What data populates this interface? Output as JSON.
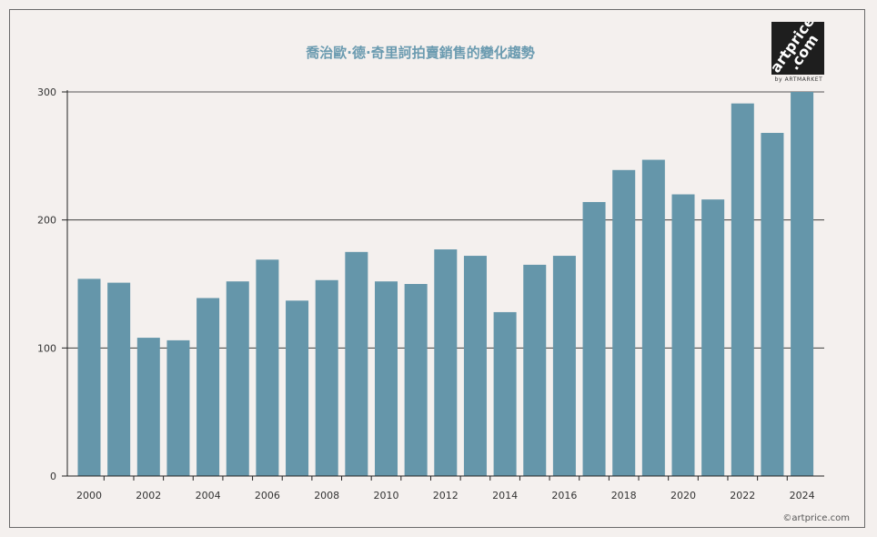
{
  "chart_data": {
    "type": "bar",
    "title": "喬治歐·德·奇里訶拍賣銷售的變化趨勢",
    "xlabel": "",
    "ylabel": "",
    "categories": [
      "2000",
      "2001",
      "2002",
      "2003",
      "2004",
      "2005",
      "2006",
      "2007",
      "2008",
      "2009",
      "2010",
      "2011",
      "2012",
      "2013",
      "2014",
      "2015",
      "2016",
      "2017",
      "2018",
      "2019",
      "2020",
      "2021",
      "2022",
      "2023",
      "2024"
    ],
    "x_tick_labels": [
      "2000",
      "2002",
      "2004",
      "2006",
      "2008",
      "2010",
      "2012",
      "2014",
      "2016",
      "2018",
      "2020",
      "2022",
      "2024"
    ],
    "values": [
      154,
      151,
      108,
      106,
      139,
      152,
      169,
      137,
      153,
      175,
      152,
      150,
      177,
      172,
      128,
      165,
      172,
      214,
      239,
      247,
      220,
      216,
      291,
      268,
      301
    ],
    "ylim": [
      0,
      300
    ],
    "y_ticks": [
      0,
      100,
      200,
      300
    ],
    "grid": true,
    "bar_color": "#6596aa",
    "legend": "none"
  },
  "logo": {
    "line1": "artprice",
    "line2": ".com",
    "sub": "by ARTMARKET"
  },
  "copyright": "©artprice.com"
}
